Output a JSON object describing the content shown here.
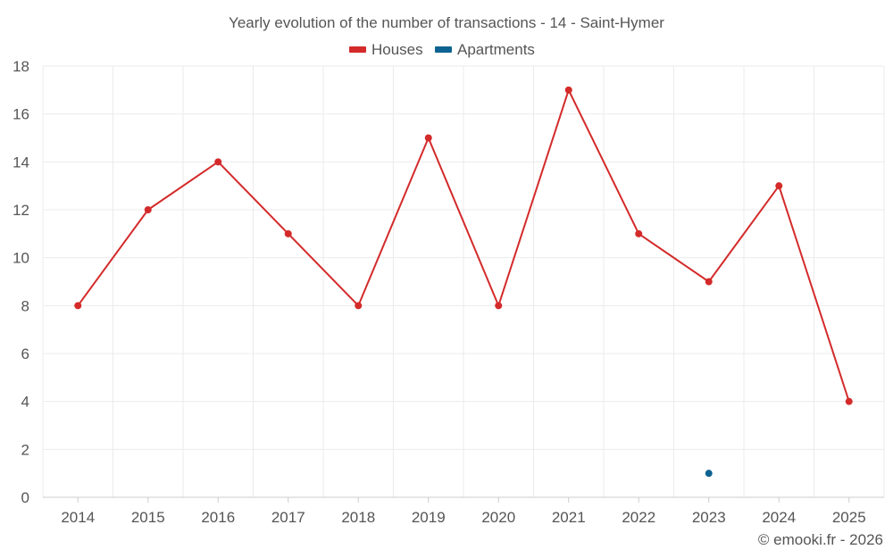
{
  "chart_data": {
    "type": "line",
    "title": "Yearly evolution of the number of transactions - 14 - Saint-Hymer",
    "categories": [
      "2014",
      "2015",
      "2016",
      "2017",
      "2018",
      "2019",
      "2020",
      "2021",
      "2022",
      "2023",
      "2024",
      "2025"
    ],
    "series": [
      {
        "name": "Houses",
        "color": "#d42a2a",
        "values": [
          8,
          12,
          14,
          11,
          8,
          15,
          8,
          17,
          11,
          9,
          13,
          4
        ]
      },
      {
        "name": "Apartments",
        "color": "#0d6391",
        "values": [
          null,
          null,
          null,
          null,
          null,
          null,
          null,
          null,
          null,
          1,
          null,
          null
        ]
      }
    ],
    "ylim": [
      0,
      18
    ],
    "yticks": [
      0,
      2,
      4,
      6,
      8,
      10,
      12,
      14,
      16,
      18
    ],
    "xlabel": "",
    "ylabel": "",
    "grid": true,
    "legend": "top-center"
  },
  "credit": "© emooki.fr - 2026"
}
